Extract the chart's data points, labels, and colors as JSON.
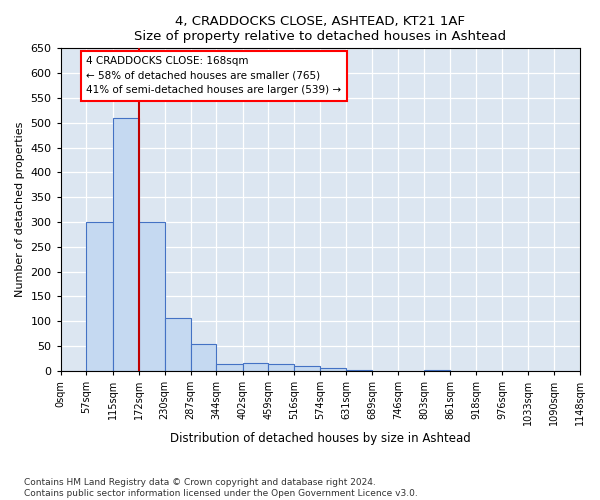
{
  "title1": "4, CRADDOCKS CLOSE, ASHTEAD, KT21 1AF",
  "title2": "Size of property relative to detached houses in Ashtead",
  "xlabel": "Distribution of detached houses by size in Ashtead",
  "ylabel": "Number of detached properties",
  "bin_edges": [
    0,
    57,
    115,
    172,
    230,
    287,
    344,
    402,
    459,
    516,
    574,
    631,
    689,
    746,
    803,
    861,
    918,
    976,
    1033,
    1090,
    1148
  ],
  "bin_labels": [
    "0sqm",
    "57sqm",
    "115sqm",
    "172sqm",
    "230sqm",
    "287sqm",
    "344sqm",
    "402sqm",
    "459sqm",
    "516sqm",
    "574sqm",
    "631sqm",
    "689sqm",
    "746sqm",
    "803sqm",
    "861sqm",
    "918sqm",
    "976sqm",
    "1033sqm",
    "1090sqm",
    "1148sqm"
  ],
  "bar_heights": [
    0,
    300,
    510,
    300,
    107,
    54,
    13,
    15,
    13,
    10,
    5,
    1,
    0,
    0,
    1,
    0,
    0,
    0,
    0,
    0
  ],
  "bar_color": "#c5d9f1",
  "bar_edge_color": "#4472c4",
  "property_line_x": 172,
  "annotation_text": "4 CRADDOCKS CLOSE: 168sqm\n← 58% of detached houses are smaller (765)\n41% of semi-detached houses are larger (539) →",
  "annotation_box_color": "white",
  "annotation_box_edge_color": "red",
  "vline_color": "#c00000",
  "ylim": [
    0,
    650
  ],
  "yticks": [
    0,
    50,
    100,
    150,
    200,
    250,
    300,
    350,
    400,
    450,
    500,
    550,
    600,
    650
  ],
  "footnote": "Contains HM Land Registry data © Crown copyright and database right 2024.\nContains public sector information licensed under the Open Government Licence v3.0.",
  "fig_bg_color": "white",
  "plot_bg_color": "#dce6f1"
}
